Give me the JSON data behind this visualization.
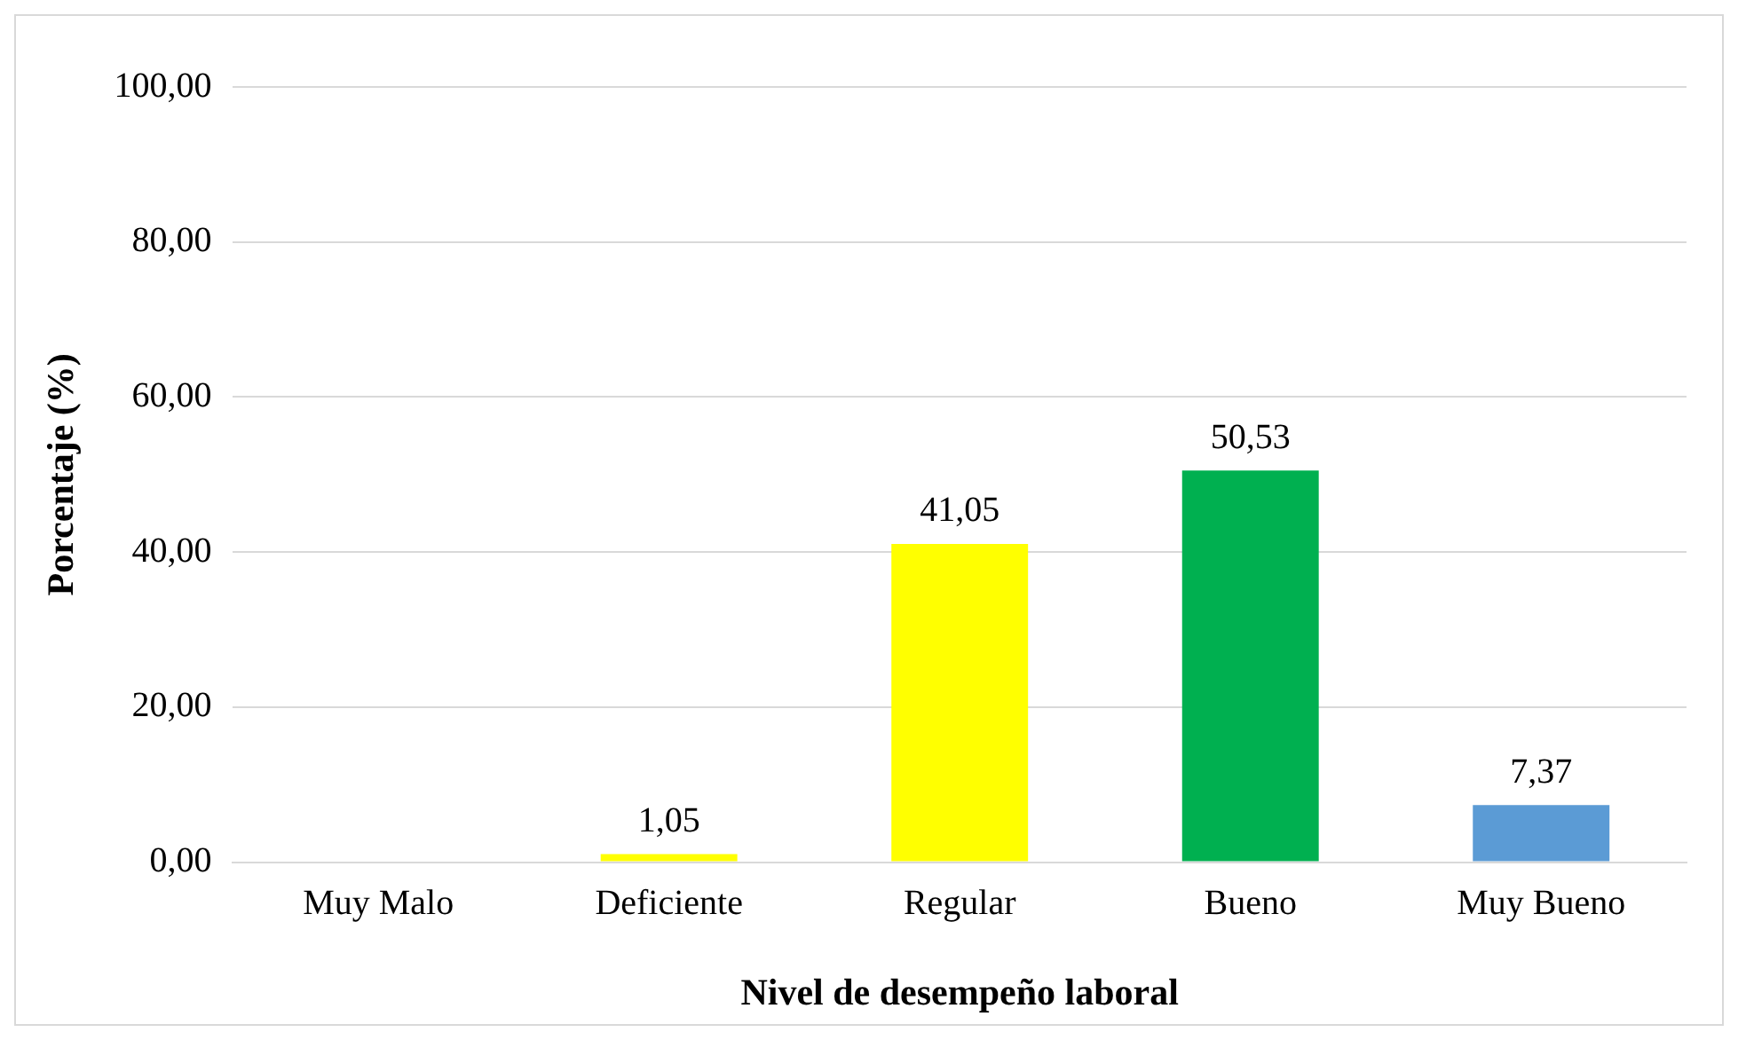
{
  "chart_data": {
    "type": "bar",
    "xlabel": "Nivel de desempeño laboral",
    "ylabel": "Porcentaje (%)",
    "categories": [
      "Muy Malo",
      "Deficiente",
      "Regular",
      "Bueno",
      "Muy Bueno"
    ],
    "values": [
      0,
      1.05,
      41.05,
      50.53,
      7.37
    ],
    "colors": [
      "#c00000",
      "#ffff00",
      "#ffff00",
      "#00b050",
      "#5b9bd5"
    ],
    "value_labels": [
      null,
      "1,05",
      "41,05",
      "50,53",
      "7,37"
    ],
    "ylim": [
      0,
      100
    ],
    "yticks": [
      {
        "value": 0,
        "label": "0,00"
      },
      {
        "value": 20,
        "label": "20,00"
      },
      {
        "value": 40,
        "label": "40,00"
      },
      {
        "value": 60,
        "label": "60,00"
      },
      {
        "value": 80,
        "label": "80,00"
      },
      {
        "value": 100,
        "label": "100,00"
      }
    ],
    "grid": "y"
  }
}
